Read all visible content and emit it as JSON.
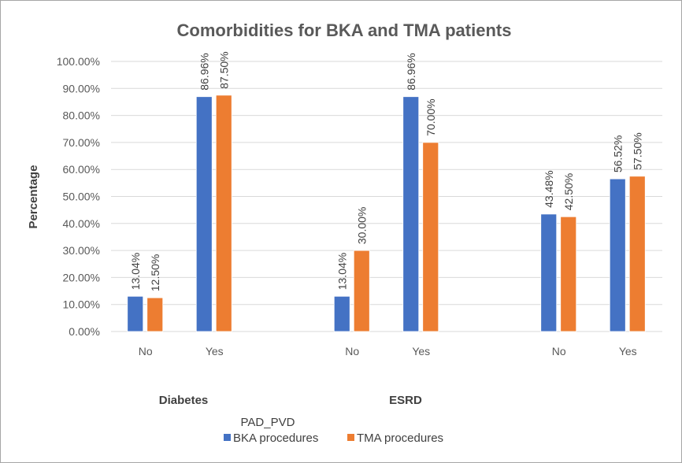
{
  "chart_data": {
    "type": "bar",
    "title": "Comorbidities for BKA and TMA patients",
    "xlabel": "",
    "ylabel": "Percentage",
    "ylim": [
      0,
      100
    ],
    "yticks": [
      "0.00%",
      "10.00%",
      "20.00%",
      "30.00%",
      "40.00%",
      "50.00%",
      "60.00%",
      "70.00%",
      "80.00%",
      "90.00%",
      "100.00%"
    ],
    "grid": true,
    "legend_position": "bottom",
    "groups": [
      {
        "name": "Diabetes",
        "categories": [
          "No",
          "Yes"
        ]
      },
      {
        "name": "ESRD",
        "categories": [
          "No",
          "Yes"
        ]
      },
      {
        "name": "PAD_PVD",
        "categories": [
          "No",
          "Yes"
        ]
      }
    ],
    "series": [
      {
        "name": "BKA procedures",
        "color": "#4472C4",
        "values": [
          13.04,
          86.96,
          13.04,
          86.96,
          43.48,
          56.52
        ],
        "labels": [
          "13.04%",
          "86.96%",
          "13.04%",
          "86.96%",
          "43.48%",
          "56.52%"
        ]
      },
      {
        "name": "TMA procedures",
        "color": "#ED7D31",
        "values": [
          12.5,
          87.5,
          30.0,
          70.0,
          42.5,
          57.5
        ],
        "labels": [
          "12.50%",
          "87.50%",
          "30.00%",
          "70.00%",
          "42.50%",
          "57.50%"
        ]
      }
    ]
  }
}
